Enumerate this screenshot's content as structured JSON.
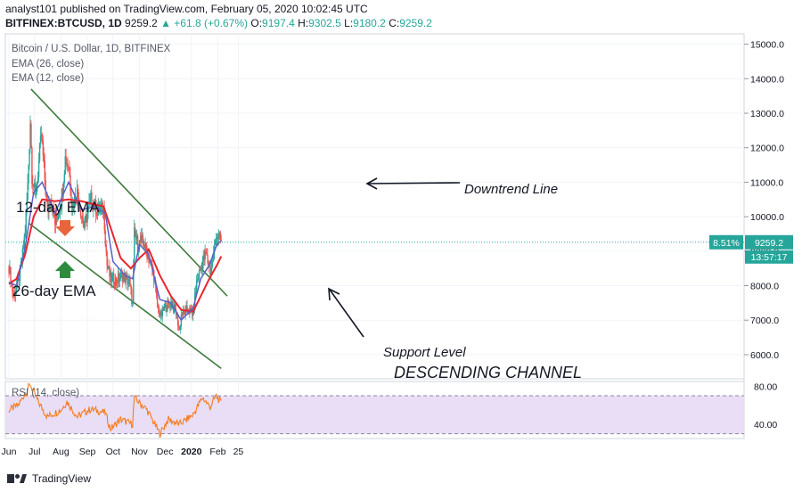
{
  "header": {
    "published": "analyst101 published on TradingView.com, February 05, 2020 10:02:45 UTC",
    "symbol": "BITFINEX:BTCUSD, 1D",
    "last": "9259.2",
    "change_arrow": "▲",
    "change": "+61.8 (+0.67%)",
    "o_label": "O:",
    "o_value": "9197.4",
    "h_label": "H:",
    "h_value": "9302.5",
    "l_label": "L:",
    "l_value": "9180.2",
    "c_label": "C:",
    "c_value": "9259.2"
  },
  "legend": {
    "title": "Bitcoin / U.S. Dollar, 1D, BITFINEX",
    "ema26": "EMA (26, close)",
    "ema12": "EMA (12, close)",
    "rsi": "RSI (14, close)"
  },
  "annotations": {
    "downtrend": "Downtrend Line",
    "support": "Support Level",
    "channel": "DESCENDING CHANNEL",
    "ema12_label": "12-day EMA",
    "ema26_label": "26-day EMA"
  },
  "price_tags": {
    "pct": "8.51%",
    "price": "9259.2",
    "countdown": "13:57:17"
  },
  "footer": {
    "brand": "TradingView"
  },
  "colors": {
    "up": "#26a69a",
    "down": "#ef5350",
    "ema12": "#5b5fc7",
    "ema26": "#e8262b",
    "channel": "#3d7a3a",
    "rsi": "#f57c1f",
    "rsi_band": "#e9def5",
    "price_tag": "#26a69a"
  },
  "chart_data": {
    "type": "candlestick",
    "y_ticks": [
      "15000.0",
      "14000.0",
      "13000.0",
      "12000.0",
      "11000.0",
      "10000.0",
      "9000.0",
      "8000.0",
      "7000.0",
      "6000.0"
    ],
    "ylim": [
      5300,
      15300
    ],
    "rsi_ticks": [
      "80.00",
      "40.00"
    ],
    "rsi_ylim": [
      25,
      85
    ],
    "x_ticks": [
      "Jun",
      "Jul",
      "Aug",
      "Sep",
      "Oct",
      "Nov",
      "Dec",
      "2020",
      "Feb",
      "25"
    ],
    "price_path": [
      [
        "2019-06-01",
        8550
      ],
      [
        "2019-06-06",
        7700
      ],
      [
        "2019-06-12",
        8100
      ],
      [
        "2019-06-17",
        8900
      ],
      [
        "2019-06-20",
        9600
      ],
      [
        "2019-06-23",
        10900
      ],
      [
        "2019-06-26",
        12800
      ],
      [
        "2019-06-28",
        11200
      ],
      [
        "2019-07-02",
        10600
      ],
      [
        "2019-07-05",
        11300
      ],
      [
        "2019-07-09",
        12400
      ],
      [
        "2019-07-12",
        11400
      ],
      [
        "2019-07-16",
        10100
      ],
      [
        "2019-07-20",
        10600
      ],
      [
        "2019-07-25",
        9800
      ],
      [
        "2019-08-01",
        10400
      ],
      [
        "2019-08-06",
        11700
      ],
      [
        "2019-08-10",
        11500
      ],
      [
        "2019-08-14",
        10300
      ],
      [
        "2019-08-20",
        10700
      ],
      [
        "2019-08-28",
        9700
      ],
      [
        "2019-09-05",
        10500
      ],
      [
        "2019-09-12",
        10200
      ],
      [
        "2019-09-20",
        10200
      ],
      [
        "2019-09-24",
        8600
      ],
      [
        "2019-09-28",
        8200
      ],
      [
        "2019-10-05",
        8150
      ],
      [
        "2019-10-12",
        8300
      ],
      [
        "2019-10-20",
        8100
      ],
      [
        "2019-10-24",
        7450
      ],
      [
        "2019-10-26",
        9500
      ],
      [
        "2019-10-30",
        9200
      ],
      [
        "2019-11-05",
        9300
      ],
      [
        "2019-11-12",
        8800
      ],
      [
        "2019-11-18",
        8300
      ],
      [
        "2019-11-22",
        7400
      ],
      [
        "2019-11-26",
        7100
      ],
      [
        "2019-12-01",
        7400
      ],
      [
        "2019-12-08",
        7500
      ],
      [
        "2019-12-14",
        7200
      ],
      [
        "2019-12-18",
        6700
      ],
      [
        "2019-12-20",
        7150
      ],
      [
        "2019-12-28",
        7300
      ],
      [
        "2020-01-03",
        7200
      ],
      [
        "2020-01-07",
        8100
      ],
      [
        "2020-01-14",
        8700
      ],
      [
        "2020-01-18",
        8900
      ],
      [
        "2020-01-23",
        8400
      ],
      [
        "2020-01-27",
        8900
      ],
      [
        "2020-01-30",
        9500
      ],
      [
        "2020-02-02",
        9400
      ],
      [
        "2020-02-05",
        9259
      ]
    ],
    "ema26": [
      [
        "2019-06-01",
        8050
      ],
      [
        "2019-06-10",
        8200
      ],
      [
        "2019-06-20",
        8900
      ],
      [
        "2019-06-30",
        10000
      ],
      [
        "2019-07-10",
        10500
      ],
      [
        "2019-07-25",
        10450
      ],
      [
        "2019-08-10",
        10500
      ],
      [
        "2019-08-25",
        10450
      ],
      [
        "2019-09-10",
        10350
      ],
      [
        "2019-09-20",
        10300
      ],
      [
        "2019-09-28",
        9700
      ],
      [
        "2019-10-10",
        8800
      ],
      [
        "2019-10-22",
        8500
      ],
      [
        "2019-11-01",
        8800
      ],
      [
        "2019-11-12",
        9050
      ],
      [
        "2019-11-25",
        8300
      ],
      [
        "2019-12-08",
        7700
      ],
      [
        "2019-12-20",
        7300
      ],
      [
        "2020-01-03",
        7250
      ],
      [
        "2020-01-12",
        7700
      ],
      [
        "2020-01-22",
        8200
      ],
      [
        "2020-01-31",
        8600
      ],
      [
        "2020-02-05",
        8850
      ]
    ],
    "ema12": [
      [
        "2019-06-01",
        8100
      ],
      [
        "2019-06-10",
        8000
      ],
      [
        "2019-06-20",
        9100
      ],
      [
        "2019-06-30",
        10700
      ],
      [
        "2019-07-10",
        11000
      ],
      [
        "2019-07-25",
        10100
      ],
      [
        "2019-08-10",
        11000
      ],
      [
        "2019-08-25",
        10200
      ],
      [
        "2019-09-10",
        10300
      ],
      [
        "2019-09-22",
        10100
      ],
      [
        "2019-10-01",
        8700
      ],
      [
        "2019-10-15",
        8300
      ],
      [
        "2019-10-24",
        8200
      ],
      [
        "2019-11-01",
        9200
      ],
      [
        "2019-11-12",
        8900
      ],
      [
        "2019-11-25",
        7600
      ],
      [
        "2019-12-08",
        7500
      ],
      [
        "2019-12-20",
        7000
      ],
      [
        "2020-01-03",
        7350
      ],
      [
        "2020-01-12",
        8200
      ],
      [
        "2020-01-22",
        8600
      ],
      [
        "2020-01-31",
        9200
      ],
      [
        "2020-02-05",
        9300
      ]
    ],
    "channel_upper": [
      [
        "2019-06-27",
        13700
      ],
      [
        "2020-02-12",
        7700
      ]
    ],
    "channel_lower": [
      [
        "2019-06-25",
        9800
      ],
      [
        "2020-02-05",
        5600
      ]
    ],
    "rsi_path": [
      [
        "2019-06-01",
        55
      ],
      [
        "2019-06-12",
        60
      ],
      [
        "2019-06-26",
        82
      ],
      [
        "2019-07-05",
        64
      ],
      [
        "2019-07-16",
        48
      ],
      [
        "2019-08-01",
        55
      ],
      [
        "2019-08-08",
        64
      ],
      [
        "2019-08-20",
        48
      ],
      [
        "2019-09-05",
        56
      ],
      [
        "2019-09-22",
        52
      ],
      [
        "2019-09-28",
        35
      ],
      [
        "2019-10-10",
        45
      ],
      [
        "2019-10-24",
        40
      ],
      [
        "2019-10-26",
        68
      ],
      [
        "2019-11-10",
        55
      ],
      [
        "2019-11-25",
        30
      ],
      [
        "2019-12-05",
        45
      ],
      [
        "2019-12-18",
        40
      ],
      [
        "2020-01-03",
        50
      ],
      [
        "2020-01-14",
        68
      ],
      [
        "2020-01-23",
        58
      ],
      [
        "2020-01-30",
        70
      ],
      [
        "2020-02-05",
        62
      ]
    ]
  }
}
